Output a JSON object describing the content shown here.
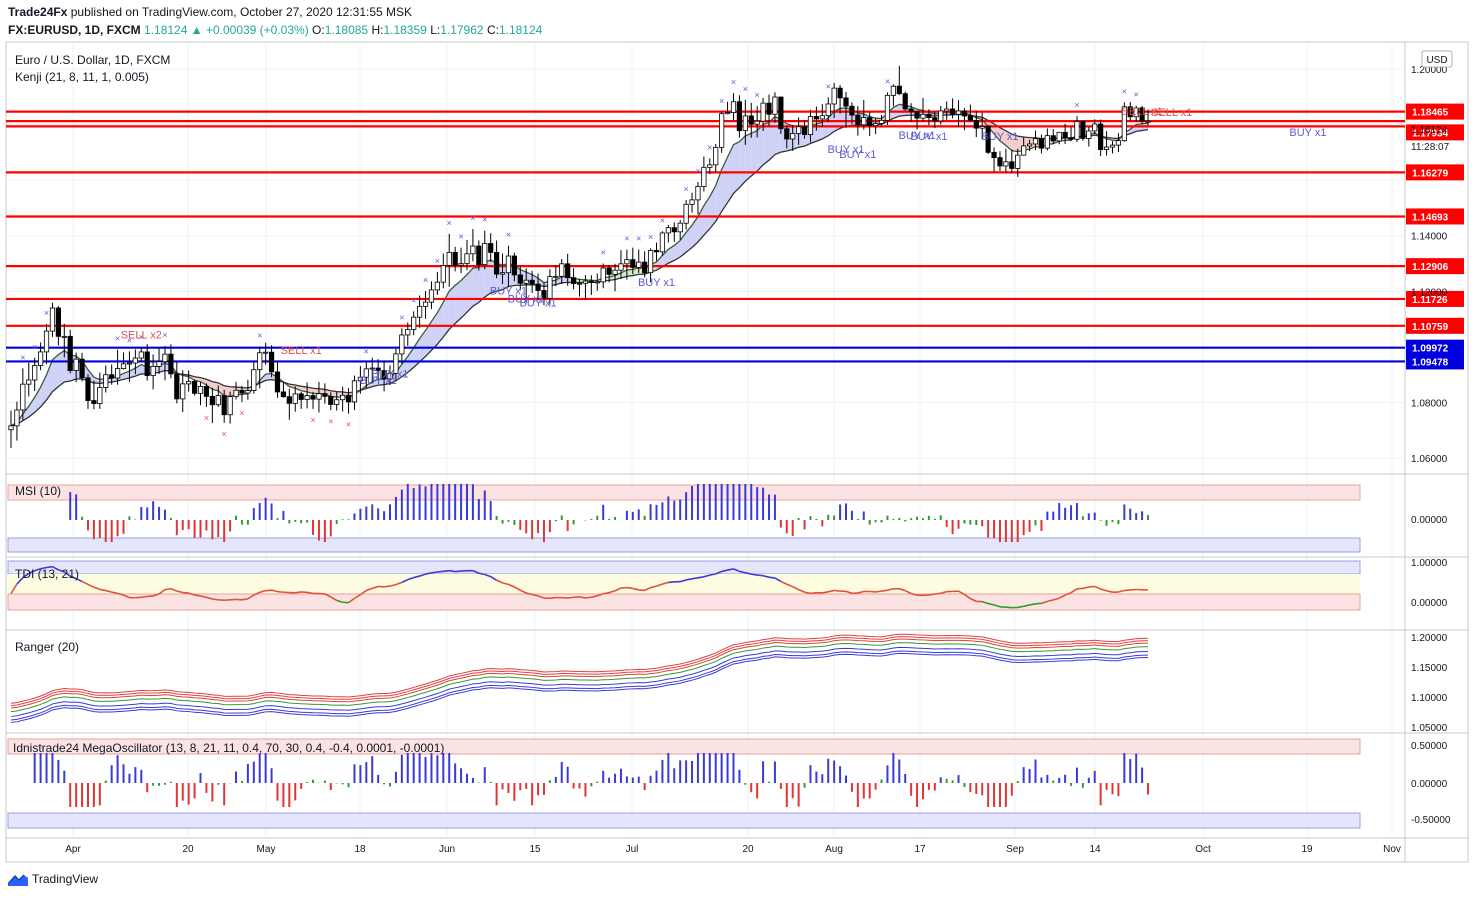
{
  "header": {
    "publisher": "Trade24Fx",
    "published_text": "published on TradingView.com, October 27, 2020 12:31:55 MSK",
    "symbol_line": "FX:EURUSD, 1D, FXCM",
    "change": "1.18124 ▲ +0.00039 (+0.03%)",
    "open_label": "O:",
    "open": "1.18085",
    "high_label": "H:",
    "high": "1.18359",
    "low_label": "L:",
    "low": "1.17962",
    "close_label": "C:",
    "close": "1.18124"
  },
  "main_pane": {
    "title": "Euro / U.S. Dollar, 1D, FXCM",
    "indicator": "Kenji (21, 8, 11, 1, 0.005)",
    "currency": "USD",
    "countdown": "11:28:07",
    "current_price": "1.18124"
  },
  "pane_titles": {
    "msi": "MSI (10)",
    "tdi": "TDI (13, 21)",
    "ranger": "Ranger (20)",
    "mega": "Idnistrade24 MegaOscillator (13, 8, 21, 11, 0.4, 70, 30, 0.4, -0.4, 0.0001, -0.0001)"
  },
  "footer": {
    "brand": "TradingView"
  },
  "colors": {
    "red_level": "#ff0000",
    "blue_level": "#0000dd",
    "bull_candle": "#ffffff",
    "bear_candle": "#000000",
    "buy_signal": "#5b5bd6",
    "sell_signal": "#e05050",
    "cloud_bull": "#c9cdf5",
    "cloud_bear": "#f3c9c9",
    "cloud_green": "#cdeac7"
  },
  "chart_data": {
    "type": "candlestick",
    "symbol": "EURUSD",
    "timeframe": "1D",
    "x_ticks": [
      "Apr",
      "20",
      "May",
      "18",
      "Jun",
      "15",
      "Jul",
      "20",
      "Aug",
      "17",
      "Sep",
      "14",
      "Oct",
      "19",
      "Nov"
    ],
    "y_ticks": [
      "1.20000",
      "1.14000",
      "1.12000",
      "1.08000",
      "1.06000"
    ],
    "ylim": [
      1.055,
      1.2025
    ],
    "price_levels": [
      {
        "value": 1.18465,
        "label": "1.18465",
        "color": "red"
      },
      {
        "value": 1.18124,
        "label": "1.18124",
        "color": "red"
      },
      {
        "value": 1.17934,
        "label": "1.17934",
        "color": "red"
      },
      {
        "value": 1.16279,
        "label": "1.16279",
        "color": "red"
      },
      {
        "value": 1.14693,
        "label": "1.14693",
        "color": "red"
      },
      {
        "value": 1.12906,
        "label": "1.12906",
        "color": "red"
      },
      {
        "value": 1.11726,
        "label": "1.11726",
        "color": "red"
      },
      {
        "value": 1.10759,
        "label": "1.10759",
        "color": "red"
      },
      {
        "value": 1.09972,
        "label": "1.09972",
        "color": "blue"
      },
      {
        "value": 1.09478,
        "label": "1.09478",
        "color": "blue"
      }
    ],
    "signal_labels": [
      {
        "text": "SELL x2",
        "price": 1.103,
        "bar": 22
      },
      {
        "text": "SELL x1",
        "price": 1.0975,
        "bar": 49
      },
      {
        "text": "BUY x1",
        "price": 1.0866,
        "bar": 62
      },
      {
        "text": "BUY x1",
        "price": 1.089,
        "bar": 64
      },
      {
        "text": "BUY x1",
        "price": 1.1188,
        "bar": 84
      },
      {
        "text": "BUY x1",
        "price": 1.116,
        "bar": 87
      },
      {
        "text": "BUY x1",
        "price": 1.1145,
        "bar": 89
      },
      {
        "text": "BUY x1",
        "price": 1.122,
        "bar": 109
      },
      {
        "text": "BUY x1",
        "price": 1.1698,
        "bar": 141
      },
      {
        "text": "BUY x1",
        "price": 1.168,
        "bar": 143
      },
      {
        "text": "BUY x1",
        "price": 1.1748,
        "bar": 153
      },
      {
        "text": "BUY x1",
        "price": 1.1745,
        "bar": 155
      },
      {
        "text": "BUY x1",
        "price": 1.1745,
        "bar": 167
      },
      {
        "text": "SELL x1",
        "price": 1.1835,
        "bar": 191
      },
      {
        "text": "SELL x1",
        "price": 1.183,
        "bar": 196
      },
      {
        "text": "BUY x1",
        "price": 1.1758,
        "bar": 219
      }
    ],
    "candles": [
      [
        1.0702,
        1.0771,
        1.0637,
        1.0716
      ],
      [
        1.0716,
        1.0803,
        1.0663,
        1.0773
      ],
      [
        1.0773,
        1.0923,
        1.0735,
        1.0866
      ],
      [
        1.0866,
        1.0943,
        1.0822,
        1.0881
      ],
      [
        1.0881,
        1.0961,
        1.0841,
        1.0933
      ],
      [
        1.0933,
        1.1016,
        1.0916,
        1.0982
      ],
      [
        1.0982,
        1.1082,
        1.0938,
        1.1057
      ],
      [
        1.1057,
        1.1159,
        1.1036,
        1.114
      ],
      [
        1.114,
        1.1147,
        1.1005,
        1.1038
      ],
      [
        1.1038,
        1.1083,
        1.0962,
        1.1038
      ],
      [
        1.1038,
        1.1062,
        1.0905,
        1.0915
      ],
      [
        1.0915,
        1.098,
        1.0873,
        1.0956
      ],
      [
        1.0956,
        1.0979,
        1.0876,
        1.0889
      ],
      [
        1.0889,
        1.0902,
        1.0777,
        1.0807
      ],
      [
        1.0807,
        1.0879,
        1.0776,
        1.0796
      ],
      [
        1.0796,
        1.0908,
        1.0777,
        1.0854
      ],
      [
        1.0854,
        1.0933,
        1.0836,
        1.09
      ],
      [
        1.09,
        1.0937,
        1.0864,
        1.0888
      ],
      [
        1.0888,
        1.099,
        1.0864,
        1.0922
      ],
      [
        1.0922,
        1.098,
        1.0919,
        1.0939
      ],
      [
        1.0939,
        1.0984,
        1.0874,
        1.0942
      ],
      [
        1.0942,
        1.0991,
        1.0902,
        1.096
      ],
      [
        1.096,
        1.0996,
        1.0946,
        1.0982
      ],
      [
        1.0982,
        1.101,
        1.0879,
        1.0897
      ],
      [
        1.0897,
        1.0973,
        1.0847,
        1.093
      ],
      [
        1.093,
        1.0996,
        1.0902,
        1.0947
      ],
      [
        1.0947,
        1.1003,
        1.088,
        1.0974
      ],
      [
        1.0974,
        1.1009,
        1.0887,
        1.0903
      ],
      [
        1.0903,
        1.0945,
        1.0797,
        1.0813
      ],
      [
        1.0813,
        1.0916,
        1.0766,
        1.0867
      ],
      [
        1.0867,
        1.0915,
        1.0839,
        1.0876
      ],
      [
        1.0876,
        1.0883,
        1.0825,
        1.0833
      ],
      [
        1.0833,
        1.0875,
        1.079,
        1.0858
      ],
      [
        1.0858,
        1.0869,
        1.0784,
        1.0822
      ],
      [
        1.0822,
        1.0853,
        1.0726,
        1.0792
      ],
      [
        1.0792,
        1.0861,
        1.0784,
        1.0825
      ],
      [
        1.0825,
        1.0846,
        1.0727,
        1.0756
      ],
      [
        1.0756,
        1.0839,
        1.0724,
        1.0821
      ],
      [
        1.0821,
        1.0874,
        1.0811,
        1.0844
      ],
      [
        1.0844,
        1.086,
        1.0801,
        1.0834
      ],
      [
        1.0834,
        1.0882,
        1.081,
        1.0843
      ],
      [
        1.0843,
        1.0947,
        1.0832,
        1.0918
      ],
      [
        1.0918,
        1.1001,
        1.0851,
        1.0979
      ],
      [
        1.0979,
        1.1015,
        1.0936,
        1.0981
      ],
      [
        1.0981,
        1.1006,
        1.0891,
        1.091
      ],
      [
        1.091,
        1.0944,
        1.0817,
        1.0838
      ],
      [
        1.0838,
        1.0872,
        1.0817,
        1.0821
      ],
      [
        1.0821,
        1.0849,
        1.0738,
        1.0797
      ],
      [
        1.0797,
        1.0858,
        1.0767,
        1.0831
      ],
      [
        1.0831,
        1.0838,
        1.0777,
        1.0811
      ],
      [
        1.0811,
        1.0872,
        1.0779,
        1.0825
      ],
      [
        1.0825,
        1.0838,
        1.0777,
        1.0812
      ],
      [
        1.0812,
        1.0874,
        1.0764,
        1.0832
      ],
      [
        1.0832,
        1.0869,
        1.0796,
        1.0822
      ],
      [
        1.0822,
        1.0837,
        1.0772,
        1.0793
      ],
      [
        1.0793,
        1.0839,
        1.0771,
        1.081
      ],
      [
        1.081,
        1.0857,
        1.0768,
        1.0826
      ],
      [
        1.0826,
        1.0852,
        1.076,
        1.0802
      ],
      [
        1.0802,
        1.0897,
        1.0773,
        1.0878
      ],
      [
        1.0878,
        1.0931,
        1.0832,
        1.0891
      ],
      [
        1.0891,
        1.0944,
        1.0852,
        1.0921
      ],
      [
        1.0921,
        1.0961,
        1.0875,
        1.0924
      ],
      [
        1.0924,
        1.0956,
        1.0885,
        1.0915
      ],
      [
        1.0915,
        1.0951,
        1.084,
        1.0885
      ],
      [
        1.0885,
        1.0934,
        1.0863,
        1.0905
      ],
      [
        1.0905,
        1.0993,
        1.088,
        1.0975
      ],
      [
        1.0975,
        1.1067,
        1.094,
        1.1043
      ],
      [
        1.1043,
        1.1088,
        1.1004,
        1.1063
      ],
      [
        1.1063,
        1.1128,
        1.1042,
        1.1107
      ],
      [
        1.1107,
        1.1185,
        1.1069,
        1.1146
      ],
      [
        1.1146,
        1.1201,
        1.1101,
        1.1161
      ],
      [
        1.1161,
        1.1236,
        1.1136,
        1.1205
      ],
      [
        1.1205,
        1.127,
        1.1187,
        1.1233
      ],
      [
        1.1233,
        1.1336,
        1.1211,
        1.1293
      ],
      [
        1.1293,
        1.1407,
        1.1216,
        1.134
      ],
      [
        1.134,
        1.136,
        1.1272,
        1.1294
      ],
      [
        1.1294,
        1.1357,
        1.1265,
        1.13
      ],
      [
        1.13,
        1.1385,
        1.1276,
        1.1335
      ],
      [
        1.1335,
        1.1424,
        1.1308,
        1.1363
      ],
      [
        1.1363,
        1.1383,
        1.1275,
        1.1296
      ],
      [
        1.1296,
        1.1418,
        1.1279,
        1.1372
      ],
      [
        1.1372,
        1.1409,
        1.1306,
        1.134
      ],
      [
        1.134,
        1.1383,
        1.1247,
        1.1262
      ],
      [
        1.1262,
        1.1336,
        1.1226,
        1.1267
      ],
      [
        1.1267,
        1.1364,
        1.1215,
        1.1327
      ],
      [
        1.1327,
        1.1339,
        1.1236,
        1.1259
      ],
      [
        1.1259,
        1.129,
        1.1204,
        1.1229
      ],
      [
        1.1229,
        1.1283,
        1.1158,
        1.124
      ],
      [
        1.124,
        1.1274,
        1.1194,
        1.1226
      ],
      [
        1.1226,
        1.1264,
        1.1168,
        1.1203
      ],
      [
        1.1203,
        1.1232,
        1.115,
        1.1175
      ],
      [
        1.1175,
        1.128,
        1.1152,
        1.1253
      ],
      [
        1.1253,
        1.1294,
        1.1219,
        1.1254
      ],
      [
        1.1254,
        1.1316,
        1.1226,
        1.1299
      ],
      [
        1.1299,
        1.1335,
        1.122,
        1.1249
      ],
      [
        1.1249,
        1.1283,
        1.1207,
        1.1228
      ],
      [
        1.1228,
        1.1245,
        1.1181,
        1.1229
      ],
      [
        1.1229,
        1.1258,
        1.1169,
        1.1237
      ],
      [
        1.1237,
        1.1258,
        1.1187,
        1.1234
      ],
      [
        1.1234,
        1.1264,
        1.1202,
        1.1234
      ],
      [
        1.1234,
        1.13,
        1.1211,
        1.1284
      ],
      [
        1.1284,
        1.1294,
        1.1232,
        1.1261
      ],
      [
        1.1261,
        1.1299,
        1.12,
        1.1276
      ],
      [
        1.1276,
        1.1348,
        1.1245,
        1.1299
      ],
      [
        1.1299,
        1.135,
        1.1242,
        1.1314
      ],
      [
        1.1314,
        1.1357,
        1.1262,
        1.1286
      ],
      [
        1.1286,
        1.1351,
        1.1266,
        1.1305
      ],
      [
        1.1305,
        1.1344,
        1.125,
        1.1267
      ],
      [
        1.1267,
        1.1355,
        1.1232,
        1.1347
      ],
      [
        1.1347,
        1.1375,
        1.131,
        1.1342
      ],
      [
        1.1342,
        1.1416,
        1.1328,
        1.141
      ],
      [
        1.141,
        1.1439,
        1.1376,
        1.1429
      ],
      [
        1.1429,
        1.1448,
        1.1378,
        1.1414
      ],
      [
        1.1414,
        1.1457,
        1.1385,
        1.1445
      ],
      [
        1.1445,
        1.1529,
        1.1422,
        1.1513
      ],
      [
        1.1513,
        1.1555,
        1.1483,
        1.1529
      ],
      [
        1.1529,
        1.1593,
        1.1477,
        1.1577
      ],
      [
        1.1577,
        1.1685,
        1.1559,
        1.1646
      ],
      [
        1.1646,
        1.1678,
        1.1622,
        1.1655
      ],
      [
        1.1655,
        1.173,
        1.1629,
        1.1718
      ],
      [
        1.1718,
        1.1845,
        1.1698,
        1.1839
      ],
      [
        1.1839,
        1.1882,
        1.1837,
        1.1843
      ],
      [
        1.1843,
        1.1913,
        1.1816,
        1.1882
      ],
      [
        1.1882,
        1.1905,
        1.1753,
        1.1778
      ],
      [
        1.1778,
        1.1889,
        1.1727,
        1.1831
      ],
      [
        1.1831,
        1.1878,
        1.1752,
        1.1801
      ],
      [
        1.1801,
        1.1867,
        1.1754,
        1.1812
      ],
      [
        1.1812,
        1.1896,
        1.1777,
        1.1877
      ],
      [
        1.1877,
        1.1908,
        1.1794,
        1.1837
      ],
      [
        1.1837,
        1.1916,
        1.1806,
        1.1899
      ],
      [
        1.1899,
        1.19,
        1.1766,
        1.1785
      ],
      [
        1.1785,
        1.1797,
        1.1714,
        1.1748
      ],
      [
        1.1748,
        1.1798,
        1.1705,
        1.1768
      ],
      [
        1.1768,
        1.1826,
        1.1727,
        1.1792
      ],
      [
        1.1792,
        1.1816,
        1.1749,
        1.1764
      ],
      [
        1.1764,
        1.1853,
        1.1736,
        1.1829
      ],
      [
        1.1829,
        1.1865,
        1.1778,
        1.182
      ],
      [
        1.182,
        1.1874,
        1.1793,
        1.1832
      ],
      [
        1.1832,
        1.1898,
        1.181,
        1.1874
      ],
      [
        1.1874,
        1.195,
        1.1823,
        1.1931
      ],
      [
        1.1931,
        1.1942,
        1.184,
        1.1896
      ],
      [
        1.1896,
        1.1917,
        1.1788,
        1.1866
      ],
      [
        1.1866,
        1.188,
        1.1802,
        1.1834
      ],
      [
        1.1834,
        1.1867,
        1.176,
        1.1799
      ],
      [
        1.1799,
        1.1888,
        1.1782,
        1.1825
      ],
      [
        1.1825,
        1.1844,
        1.1759,
        1.1796
      ],
      [
        1.1796,
        1.1822,
        1.1766,
        1.1804
      ],
      [
        1.1804,
        1.1834,
        1.1797,
        1.1815
      ],
      [
        1.1815,
        1.1916,
        1.1798,
        1.1905
      ],
      [
        1.1905,
        1.1945,
        1.1866,
        1.1938
      ],
      [
        1.1938,
        1.2011,
        1.1906,
        1.1911
      ],
      [
        1.1911,
        1.1918,
        1.185,
        1.1856
      ],
      [
        1.1856,
        1.1877,
        1.1809,
        1.1847
      ],
      [
        1.1847,
        1.1849,
        1.1782,
        1.1823
      ],
      [
        1.1823,
        1.1896,
        1.1813,
        1.1837
      ],
      [
        1.1837,
        1.1855,
        1.1798,
        1.1825
      ],
      [
        1.1825,
        1.1846,
        1.1787,
        1.1813
      ],
      [
        1.1813,
        1.1867,
        1.18,
        1.1849
      ],
      [
        1.1849,
        1.1883,
        1.1817,
        1.1856
      ],
      [
        1.1856,
        1.1894,
        1.1822,
        1.1837
      ],
      [
        1.1837,
        1.1888,
        1.1791,
        1.1849
      ],
      [
        1.1849,
        1.1859,
        1.178,
        1.1831
      ],
      [
        1.1831,
        1.1872,
        1.181,
        1.1815
      ],
      [
        1.1815,
        1.1849,
        1.1755,
        1.1787
      ],
      [
        1.1787,
        1.1843,
        1.1748,
        1.1793
      ],
      [
        1.1793,
        1.1799,
        1.1694,
        1.17
      ],
      [
        1.17,
        1.1718,
        1.163,
        1.1681
      ],
      [
        1.1681,
        1.1704,
        1.1633,
        1.1651
      ],
      [
        1.1651,
        1.1713,
        1.1629,
        1.1666
      ],
      [
        1.1666,
        1.171,
        1.1627,
        1.1642
      ],
      [
        1.1642,
        1.1713,
        1.1612,
        1.169
      ],
      [
        1.169,
        1.1754,
        1.1688,
        1.1723
      ],
      [
        1.1723,
        1.1745,
        1.1705,
        1.173
      ],
      [
        1.173,
        1.1778,
        1.1708,
        1.1749
      ],
      [
        1.1749,
        1.1764,
        1.1696,
        1.1715
      ],
      [
        1.1715,
        1.1786,
        1.1707,
        1.176
      ],
      [
        1.176,
        1.1784,
        1.173,
        1.1741
      ],
      [
        1.1741,
        1.1772,
        1.1729,
        1.1772
      ],
      [
        1.1772,
        1.1803,
        1.173,
        1.1753
      ],
      [
        1.1753,
        1.179,
        1.174,
        1.1747
      ],
      [
        1.1747,
        1.183,
        1.1737,
        1.1811
      ],
      [
        1.1811,
        1.1815,
        1.1742,
        1.175
      ],
      [
        1.175,
        1.1791,
        1.1721,
        1.1777
      ],
      [
        1.1777,
        1.1819,
        1.1765,
        1.1802
      ],
      [
        1.1802,
        1.1818,
        1.1687,
        1.171
      ],
      [
        1.171,
        1.1776,
        1.1688,
        1.1719
      ],
      [
        1.1719,
        1.174,
        1.1696,
        1.1726
      ],
      [
        1.1726,
        1.1769,
        1.1701,
        1.1742
      ],
      [
        1.1742,
        1.188,
        1.1738,
        1.1864
      ],
      [
        1.1864,
        1.1881,
        1.1814,
        1.1828
      ],
      [
        1.1828,
        1.1868,
        1.1809,
        1.186
      ],
      [
        1.186,
        1.1867,
        1.18,
        1.1812
      ],
      [
        1.1812,
        1.1854,
        1.1797,
        1.1812
      ]
    ]
  }
}
